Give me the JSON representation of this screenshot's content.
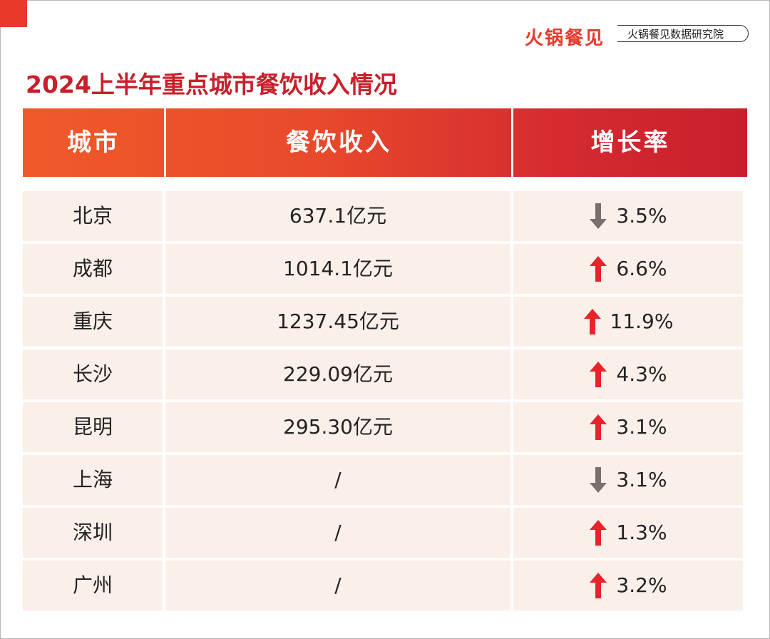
{
  "brand": "火锅餐见",
  "institute": "火锅餐见数据研究院",
  "title": "2024上半年重点城市餐饮收入情况",
  "columns": [
    "城市",
    "餐饮收入",
    "增长率"
  ],
  "colors": {
    "accent": "#e8392b",
    "up": "#e8232b",
    "down": "#7a6f6a",
    "row_bg": "#fbefe9"
  },
  "rows": [
    {
      "city": "北京",
      "revenue": "637.1亿元",
      "rate": "3.5%",
      "direction": "down"
    },
    {
      "city": "成都",
      "revenue": "1014.1亿元",
      "rate": "6.6%",
      "direction": "up"
    },
    {
      "city": "重庆",
      "revenue": "1237.45亿元",
      "rate": "11.9%",
      "direction": "up"
    },
    {
      "city": "长沙",
      "revenue": "229.09亿元",
      "rate": "4.3%",
      "direction": "up"
    },
    {
      "city": "昆明",
      "revenue": "295.30亿元",
      "rate": "3.1%",
      "direction": "up"
    },
    {
      "city": "上海",
      "revenue": "/",
      "rate": "3.1%",
      "direction": "down"
    },
    {
      "city": "深圳",
      "revenue": "/",
      "rate": "1.3%",
      "direction": "up"
    },
    {
      "city": "广州",
      "revenue": "/",
      "rate": "3.2%",
      "direction": "up"
    }
  ]
}
